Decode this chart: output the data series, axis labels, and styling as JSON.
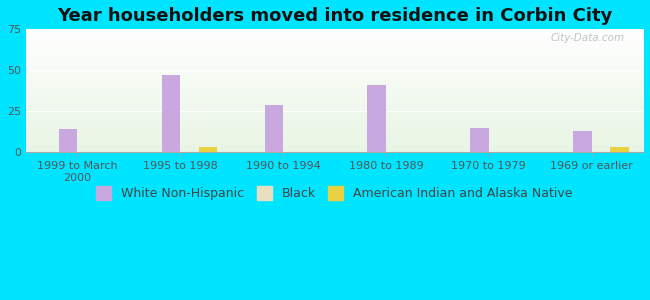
{
  "title": "Year householders moved into residence in Corbin City",
  "categories": [
    "1999 to March\n2000",
    "1995 to 1998",
    "1990 to 1994",
    "1980 to 1989",
    "1970 to 1979",
    "1969 or earlier"
  ],
  "white_non_hispanic": [
    14,
    47,
    29,
    41,
    15,
    13
  ],
  "black": [
    0,
    0,
    0,
    0,
    0,
    0
  ],
  "american_indian": [
    0,
    3,
    0,
    0,
    0,
    3
  ],
  "white_color": "#c9a8e0",
  "black_color": "#e8dfc0",
  "american_indian_color": "#e8d040",
  "background_outer": "#00e5ff",
  "ylim": [
    0,
    75
  ],
  "yticks": [
    0,
    25,
    50,
    75
  ],
  "bar_width": 0.18,
  "title_fontsize": 13,
  "legend_fontsize": 9,
  "tick_fontsize": 8,
  "watermark": "City-Data.com"
}
